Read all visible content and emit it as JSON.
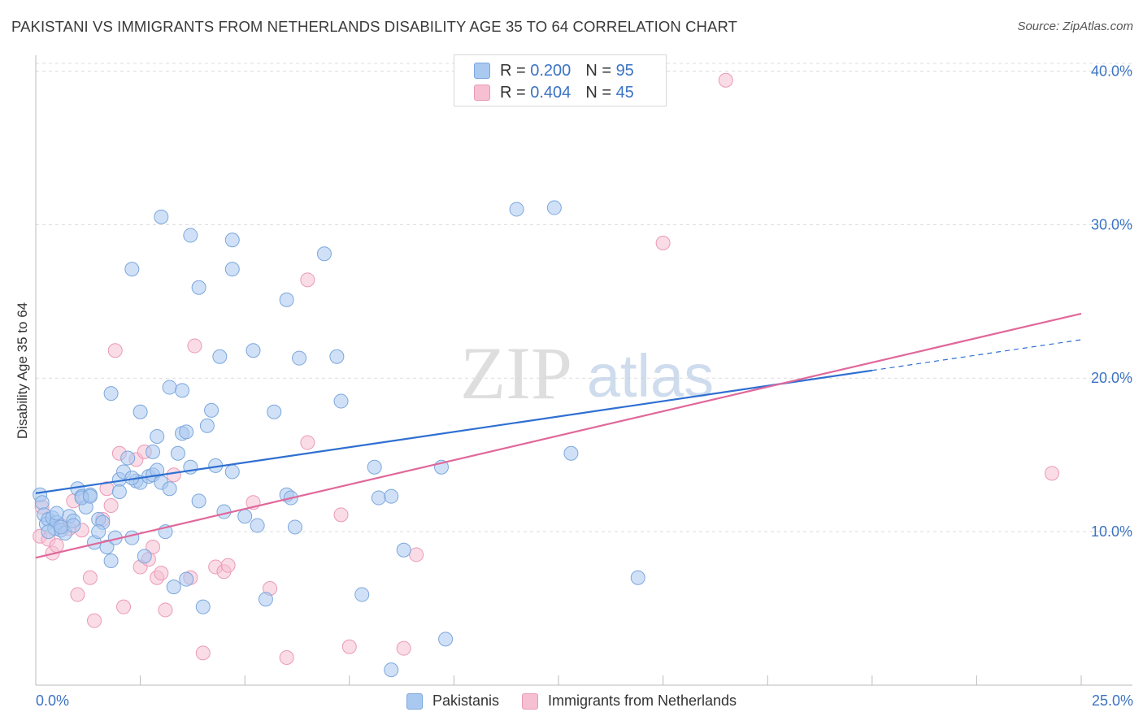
{
  "header": {
    "title": "PAKISTANI VS IMMIGRANTS FROM NETHERLANDS DISABILITY AGE 35 TO 64 CORRELATION CHART",
    "source": "Source: ZipAtlas.com"
  },
  "legend": {
    "rows": [
      {
        "r_label": "R =",
        "r_value": "0.200",
        "n_label": "N =",
        "n_value": "95"
      },
      {
        "r_label": "R =",
        "r_value": "0.404",
        "n_label": "N =",
        "n_value": "45"
      }
    ]
  },
  "watermark": {
    "zip": "ZIP",
    "atlas": "atlas"
  },
  "colors": {
    "blue_fill": "#a9c9f0",
    "blue_stroke": "#7ca7dc",
    "blue_line": "#2f6fd1",
    "pink_fill": "#f6bfd2",
    "pink_stroke": "#ea9ab8",
    "pink_line": "#e0689a",
    "axis_text": "#3b73c4",
    "grid": "#dcdcdc"
  },
  "chart_data": {
    "type": "scatter",
    "title": "PAKISTANI VS IMMIGRANTS FROM NETHERLANDS DISABILITY AGE 35 TO 64 CORRELATION CHART",
    "xlabel": "",
    "ylabel": "Disability Age 35 to 64",
    "xlim": [
      0,
      25
    ],
    "ylim": [
      0,
      40.5
    ],
    "x_tick_labels": [
      "0.0%",
      "25.0%"
    ],
    "y_ticks": [
      10,
      20,
      30,
      40
    ],
    "y_tick_labels": [
      "10.0%",
      "20.0%",
      "30.0%",
      "40.0%"
    ],
    "grid": true,
    "legend_position": "top-center",
    "series": [
      {
        "name": "Pakistanis",
        "R": 0.2,
        "N": 95,
        "trend": {
          "x0": 0,
          "y0": 12.5,
          "x1": 20,
          "y1": 20.5,
          "dashed_to_x": 25,
          "dashed_to_y": 22.5
        },
        "points": [
          [
            0.1,
            12.4
          ],
          [
            0.15,
            11.9
          ],
          [
            0.2,
            11.1
          ],
          [
            0.25,
            10.5
          ],
          [
            0.3,
            10.8
          ],
          [
            0.4,
            10.9
          ],
          [
            0.45,
            10.2
          ],
          [
            0.5,
            10.6
          ],
          [
            0.6,
            10.1
          ],
          [
            0.7,
            9.9
          ],
          [
            0.8,
            11.0
          ],
          [
            0.9,
            10.7
          ],
          [
            1.0,
            12.8
          ],
          [
            1.1,
            12.3
          ],
          [
            1.2,
            11.6
          ],
          [
            1.3,
            12.4
          ],
          [
            1.4,
            9.3
          ],
          [
            1.5,
            10.8
          ],
          [
            1.6,
            10.6
          ],
          [
            1.7,
            9.0
          ],
          [
            1.8,
            8.1
          ],
          [
            1.9,
            9.6
          ],
          [
            2.0,
            13.4
          ],
          [
            2.1,
            13.9
          ],
          [
            2.2,
            14.8
          ],
          [
            2.3,
            9.6
          ],
          [
            2.4,
            13.3
          ],
          [
            2.5,
            13.2
          ],
          [
            2.6,
            8.4
          ],
          [
            2.7,
            13.6
          ],
          [
            2.8,
            13.7
          ],
          [
            2.9,
            14.0
          ],
          [
            3.0,
            13.2
          ],
          [
            3.1,
            10.0
          ],
          [
            3.2,
            12.8
          ],
          [
            3.3,
            6.4
          ],
          [
            3.4,
            15.1
          ],
          [
            3.5,
            16.4
          ],
          [
            3.6,
            6.9
          ],
          [
            3.7,
            14.2
          ],
          [
            3.9,
            12.0
          ],
          [
            4.0,
            5.1
          ],
          [
            4.1,
            16.9
          ],
          [
            4.2,
            17.9
          ],
          [
            4.3,
            14.3
          ],
          [
            4.5,
            11.3
          ],
          [
            4.7,
            13.9
          ],
          [
            5.0,
            11.0
          ],
          [
            5.3,
            10.4
          ],
          [
            5.5,
            5.6
          ],
          [
            5.7,
            17.8
          ],
          [
            6.0,
            12.4
          ],
          [
            6.1,
            12.2
          ],
          [
            6.2,
            10.3
          ],
          [
            6.3,
            21.3
          ],
          [
            8.1,
            14.2
          ],
          [
            8.2,
            12.2
          ],
          [
            8.5,
            12.3
          ],
          [
            8.8,
            8.8
          ],
          [
            9.8,
            3.0
          ],
          [
            9.7,
            14.2
          ],
          [
            12.8,
            15.1
          ],
          [
            14.4,
            7.0
          ],
          [
            3.2,
            19.4
          ],
          [
            3.5,
            19.2
          ],
          [
            2.5,
            17.8
          ],
          [
            2.9,
            16.2
          ],
          [
            3.6,
            16.5
          ],
          [
            1.8,
            19.0
          ],
          [
            2.8,
            15.2
          ],
          [
            4.4,
            21.4
          ],
          [
            5.2,
            21.8
          ],
          [
            7.2,
            21.4
          ],
          [
            7.3,
            18.5
          ],
          [
            6.0,
            25.1
          ],
          [
            4.7,
            27.1
          ],
          [
            4.7,
            29.0
          ],
          [
            3.9,
            25.9
          ],
          [
            3.7,
            29.3
          ],
          [
            3.0,
            30.5
          ],
          [
            2.3,
            27.1
          ],
          [
            6.9,
            28.1
          ],
          [
            11.5,
            31.0
          ],
          [
            12.4,
            31.1
          ],
          [
            8.5,
            1.0
          ],
          [
            7.8,
            5.9
          ],
          [
            0.5,
            11.2
          ],
          [
            0.9,
            10.4
          ],
          [
            1.1,
            12.2
          ],
          [
            1.3,
            12.3
          ],
          [
            2.0,
            12.6
          ],
          [
            2.3,
            13.5
          ],
          [
            1.5,
            10.0
          ],
          [
            0.3,
            10.0
          ],
          [
            0.6,
            10.3
          ]
        ]
      },
      {
        "name": "Immigrants from Netherlands",
        "R": 0.404,
        "N": 45,
        "trend": {
          "x0": 0,
          "y0": 8.3,
          "x1": 25,
          "y1": 24.2
        },
        "points": [
          [
            0.1,
            9.7
          ],
          [
            0.15,
            11.6
          ],
          [
            0.3,
            9.5
          ],
          [
            0.4,
            8.6
          ],
          [
            0.5,
            9.1
          ],
          [
            0.6,
            10.4
          ],
          [
            0.8,
            10.2
          ],
          [
            0.9,
            12.0
          ],
          [
            1.0,
            5.9
          ],
          [
            1.1,
            10.1
          ],
          [
            1.3,
            7.0
          ],
          [
            1.4,
            4.2
          ],
          [
            1.6,
            10.8
          ],
          [
            1.7,
            12.8
          ],
          [
            1.8,
            11.7
          ],
          [
            1.9,
            21.8
          ],
          [
            2.0,
            15.1
          ],
          [
            2.1,
            5.1
          ],
          [
            2.4,
            14.7
          ],
          [
            2.5,
            7.7
          ],
          [
            2.6,
            15.2
          ],
          [
            2.7,
            8.2
          ],
          [
            2.8,
            9.0
          ],
          [
            2.9,
            7.0
          ],
          [
            3.0,
            7.3
          ],
          [
            3.1,
            4.9
          ],
          [
            3.3,
            13.7
          ],
          [
            3.7,
            7.0
          ],
          [
            3.8,
            22.1
          ],
          [
            4.0,
            2.1
          ],
          [
            4.3,
            7.7
          ],
          [
            4.5,
            7.4
          ],
          [
            4.6,
            7.8
          ],
          [
            5.2,
            11.9
          ],
          [
            5.6,
            6.3
          ],
          [
            6.0,
            1.8
          ],
          [
            6.5,
            26.4
          ],
          [
            6.5,
            15.8
          ],
          [
            7.3,
            11.1
          ],
          [
            7.5,
            2.5
          ],
          [
            8.8,
            2.4
          ],
          [
            9.1,
            8.5
          ],
          [
            15.0,
            28.8
          ],
          [
            16.5,
            39.4
          ],
          [
            24.3,
            13.8
          ]
        ]
      }
    ]
  },
  "bottom_legend": {
    "items": [
      {
        "label": "Pakistanis"
      },
      {
        "label": "Immigrants from Netherlands"
      }
    ]
  }
}
